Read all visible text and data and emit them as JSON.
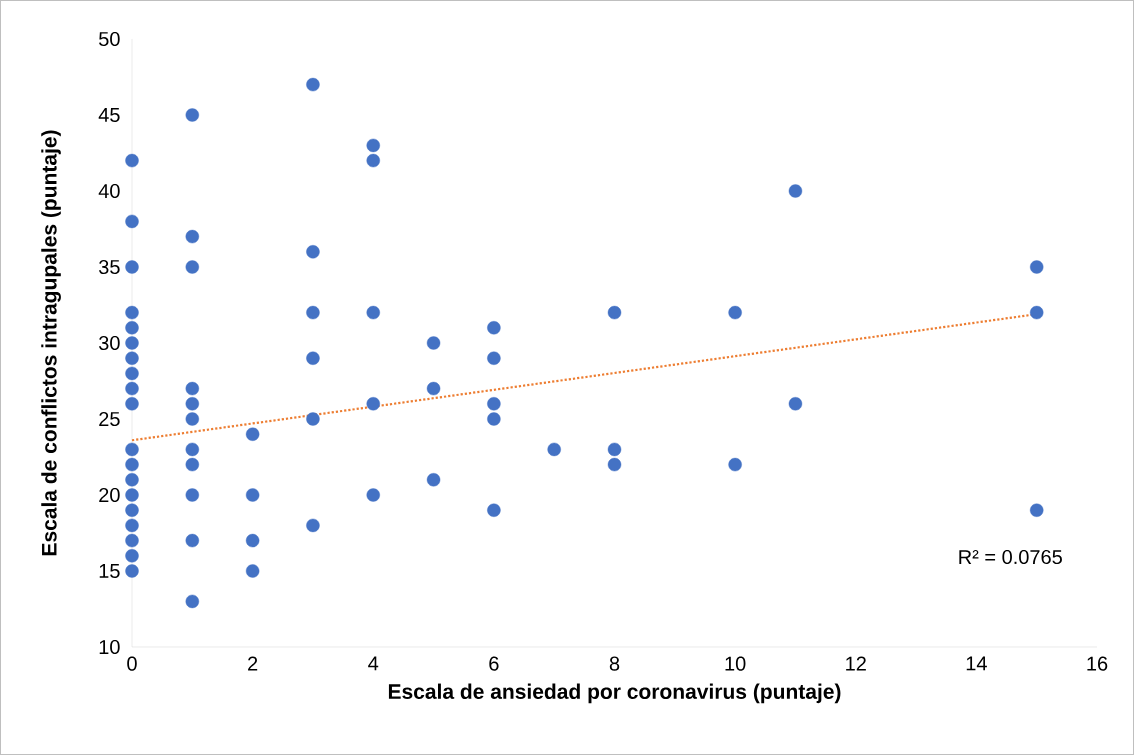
{
  "chart_data": {
    "type": "scatter",
    "xlabel": "Escala de ansiedad por coronavirus (puntaje)",
    "ylabel": "Escala de conflictos intragupales (puntaje)",
    "xlim": [
      0,
      16
    ],
    "ylim": [
      10,
      50
    ],
    "xticks": [
      0,
      2,
      4,
      6,
      8,
      10,
      12,
      14,
      16
    ],
    "yticks": [
      10,
      15,
      20,
      25,
      30,
      35,
      40,
      45,
      50
    ],
    "grid": false,
    "series": [
      {
        "color": "#4472c4",
        "marker": "circle",
        "x": [
          0,
          0,
          0,
          0,
          0,
          0,
          0,
          0,
          0,
          0,
          0,
          0,
          0,
          0,
          0,
          0,
          0,
          0,
          0,
          1,
          1,
          1,
          1,
          1,
          1,
          1,
          1,
          1,
          1,
          1,
          2,
          2,
          2,
          2,
          3,
          3,
          3,
          3,
          3,
          3,
          4,
          4,
          4,
          4,
          4,
          5,
          5,
          5,
          6,
          6,
          6,
          6,
          6,
          7,
          8,
          8,
          8,
          10,
          10,
          11,
          11,
          15,
          15,
          15
        ],
        "values": [
          42,
          38,
          35,
          32,
          31,
          30,
          29,
          28,
          27,
          26,
          23,
          22,
          21,
          20,
          19,
          18,
          17,
          16,
          15,
          45,
          37,
          35,
          27,
          26,
          25,
          23,
          22,
          20,
          17,
          13,
          24,
          20,
          17,
          15,
          47,
          36,
          32,
          29,
          25,
          18,
          43,
          42,
          32,
          26,
          20,
          30,
          27,
          21,
          31,
          29,
          26,
          25,
          19,
          23,
          32,
          23,
          22,
          32,
          22,
          40,
          26,
          35,
          32,
          19
        ]
      },
      {
        "type": "line",
        "color": "#ed7d31",
        "line_style": "dotted",
        "marker": "none",
        "x": [
          0,
          15
        ],
        "values": [
          23.6,
          31.9
        ]
      }
    ],
    "annotations": [
      "R² = 0.0765"
    ]
  }
}
